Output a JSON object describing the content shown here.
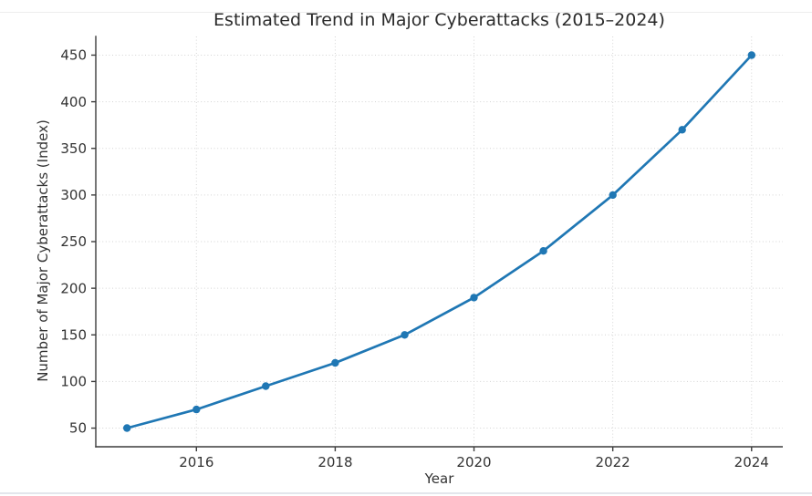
{
  "chart_data": {
    "type": "line",
    "title": "Estimated Trend in Major Cyberattacks (2015–2024)",
    "xlabel": "Year",
    "ylabel": "Number of Major Cyberattacks (Index)",
    "x": [
      2015,
      2016,
      2017,
      2018,
      2019,
      2020,
      2021,
      2022,
      2023,
      2024
    ],
    "values": [
      50,
      70,
      95,
      120,
      150,
      190,
      240,
      300,
      370,
      450
    ],
    "xticks": [
      2016,
      2018,
      2020,
      2022,
      2024
    ],
    "yticks": [
      50,
      100,
      150,
      200,
      250,
      300,
      350,
      400,
      450
    ],
    "xlim": [
      2014.55,
      2024.45
    ],
    "ylim": [
      30,
      470
    ],
    "grid": true,
    "grid_style": "dotted",
    "legend": false,
    "marker": "circle",
    "line_color": "#1f77b4",
    "grid_color": "#c9c9c9",
    "axis_color": "#3c3c3c",
    "tick_text_color": "#333333",
    "background": "#ffffff"
  }
}
